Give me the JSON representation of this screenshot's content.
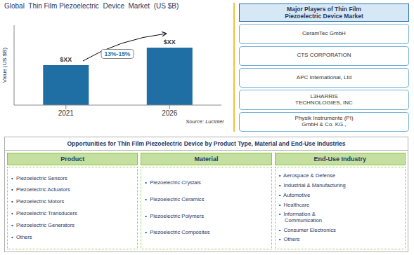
{
  "chart_data": {
    "type": "bar",
    "title": "Global  Thin Film Piezoelectric  Device  Market  (US $B)",
    "ylabel": "Value (US $B)",
    "categories": [
      "2021",
      "2026"
    ],
    "values": [
      0.5,
      0.72
    ],
    "value_labels": [
      "$XX",
      "$XX"
    ],
    "data_labels": true,
    "color": "#1F6FA5",
    "ylim": [
      0,
      1.0
    ],
    "tick_labels": "x",
    "grid": false,
    "annotations": [
      "13%-15%",
      "Source: Lucintel"
    ],
    "side_panel": {
      "title": "Major Players of Thin Film\nPiezoelectric Device Market",
      "items": [
        "CeramTec GmbH",
        "CTS CORPORATION",
        "APC International, Ltd",
        "L3HARRIS\nTECHNOLOGIES, INC",
        "Physik Instrumente (PI)\nGmbH & Co. KG.,"
      ]
    },
    "bottom_panel": {
      "title": "Opportunities for Thin Film Piezoelectric Device by Product Type, Material and End-Use Industries",
      "columns": [
        {
          "header": "Product",
          "items": [
            "•  Piezoelectric Sensors",
            "•  Piezoelectric Actuators",
            "•  Piezoelectric Motors",
            "•  Piezoelectric Transducers",
            "•  Piezoelectric Generators",
            "•  Others"
          ]
        },
        {
          "header": "Material",
          "items": [
            "•  Piezoelectric Crystals",
            "•  Piezoelectric Ceramics",
            "•  Piezoelectric Polymers",
            "•  Piezoelectric Composites"
          ]
        },
        {
          "header": "End-Use Industry",
          "items": [
            "•  Aerospace & Defense",
            "•  Industrial & Manufacturing",
            "•  Automotive",
            "•  Healthcare",
            "•  Information &\n    Communication",
            "•  Consumer Electronics",
            "•  Others"
          ]
        }
      ]
    }
  }
}
